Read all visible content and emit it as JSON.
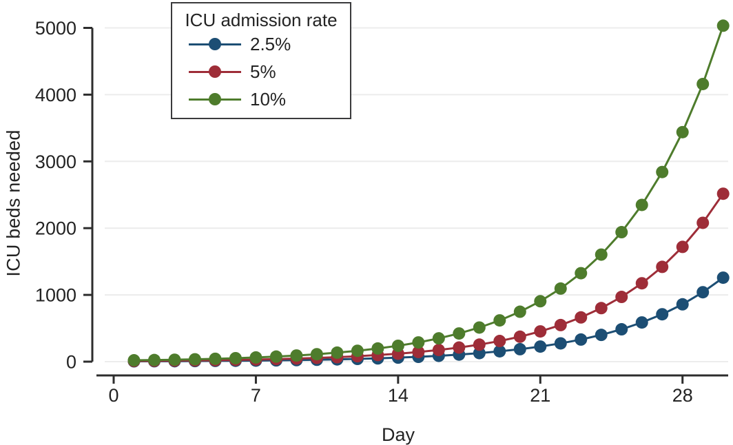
{
  "figure": {
    "background": "#ffffff",
    "axis_color": "#2d2d2d",
    "grid_color": "#ececec",
    "text_color": "#232323",
    "legend_border_color": "#3a3a3c"
  },
  "legend": {
    "title": "ICU admission rate",
    "items": [
      {
        "label": "2.5%",
        "color": "#1c4e74"
      },
      {
        "label": "5%",
        "color": "#9e2d38"
      },
      {
        "label": "10%",
        "color": "#4e7c2c"
      }
    ]
  },
  "chart_data": {
    "type": "line",
    "title": "",
    "xlabel": "Day",
    "ylabel": "ICU beds needed",
    "x": [
      1,
      2,
      3,
      4,
      5,
      6,
      7,
      8,
      9,
      10,
      11,
      12,
      13,
      14,
      15,
      16,
      17,
      18,
      19,
      20,
      21,
      22,
      23,
      24,
      25,
      26,
      27,
      28,
      29,
      30
    ],
    "series": [
      {
        "name": "2.5%",
        "color": "#1c4e74",
        "values": [
          5,
          6,
          7,
          9,
          11,
          13,
          16,
          19,
          23,
          28,
          34,
          41,
          49,
          60,
          72,
          87,
          106,
          128,
          155,
          187,
          226,
          274,
          331,
          401,
          485,
          587,
          710,
          859,
          1040,
          1258
        ]
      },
      {
        "name": "5%",
        "color": "#9e2d38",
        "values": [
          10,
          12,
          15,
          18,
          21,
          26,
          31,
          38,
          46,
          56,
          67,
          81,
          99,
          119,
          144,
          175,
          211,
          255,
          309,
          374,
          453,
          548,
          663,
          802,
          970,
          1174,
          1420,
          1719,
          2080,
          2516
        ]
      },
      {
        "name": "10%",
        "color": "#4e7c2c",
        "values": [
          20,
          24,
          29,
          35,
          43,
          52,
          63,
          76,
          92,
          111,
          135,
          163,
          197,
          238,
          288,
          349,
          422,
          511,
          618,
          748,
          905,
          1095,
          1325,
          1604,
          1940,
          2348,
          2841,
          3438,
          4159,
          5033
        ]
      }
    ],
    "xticks": [
      0,
      7,
      14,
      21,
      28
    ],
    "yticks": [
      0,
      1000,
      2000,
      3000,
      4000,
      5000
    ],
    "xlim": [
      0,
      30.5
    ],
    "ylim": [
      0,
      5000
    ],
    "grid": "horizontal",
    "legend_position": "top-left-inset",
    "marker": "circle"
  }
}
